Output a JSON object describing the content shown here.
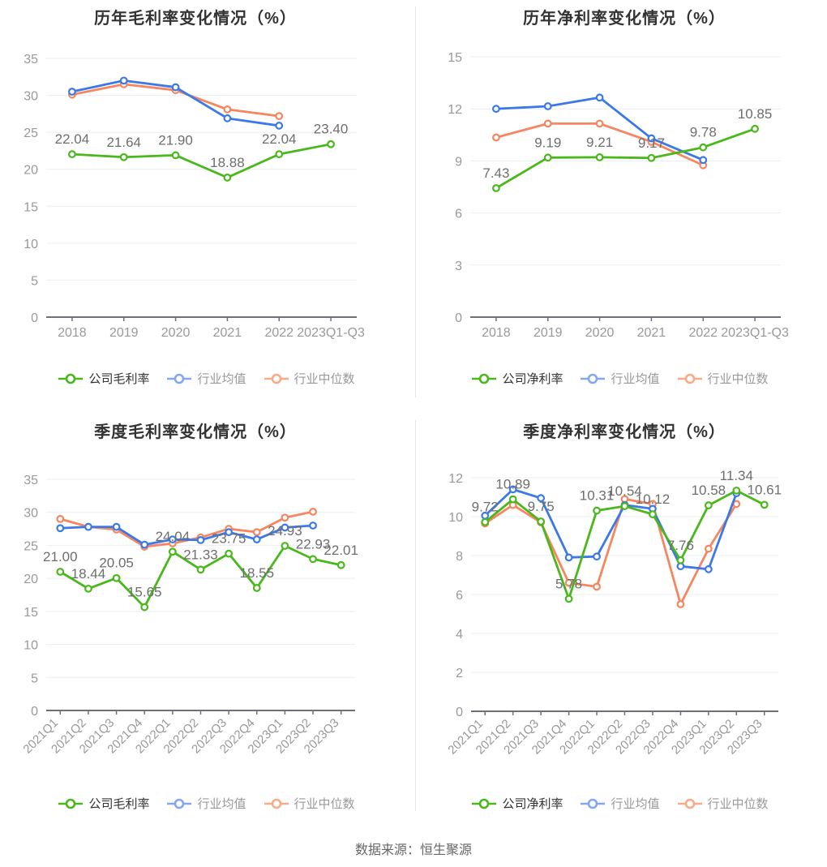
{
  "page": {
    "footer": "数据来源：恒生聚源"
  },
  "colors": {
    "company": "#4ab71a",
    "industry_avg": "#3b79e9",
    "industry_median": "#f6865f",
    "legend_avg": "#84a7f0",
    "legend_median": "#f8ab87",
    "grid": "#e9eef5",
    "axis": "#6e7079",
    "tick_label": "#999999",
    "data_label": "#6e6e6e",
    "title": "#333333"
  },
  "chart_data": [
    {
      "type": "line",
      "title": "历年毛利率变化情况（%）",
      "legend_position": "bottom",
      "grid": true,
      "x_label_rotate": 0,
      "categories": [
        "2018",
        "2019",
        "2020",
        "2021",
        "2022",
        "2023Q1-Q3"
      ],
      "y_axis": {
        "min": 0,
        "max": 35,
        "step": 5
      },
      "series": [
        {
          "id": "company",
          "name": "公司毛利率",
          "values": [
            22.04,
            21.64,
            21.9,
            18.88,
            22.04,
            23.4
          ],
          "labels": [
            "22.04",
            "21.64",
            "21.90",
            "18.88",
            "22.04",
            "23.40"
          ]
        },
        {
          "id": "industry_avg",
          "name": "行业均值",
          "values": [
            30.5,
            32.0,
            31.1,
            26.9,
            25.9
          ]
        },
        {
          "id": "industry_median",
          "name": "行业中位数",
          "values": [
            30.1,
            31.5,
            30.7,
            28.1,
            27.2
          ]
        }
      ]
    },
    {
      "type": "line",
      "title": "历年净利率变化情况（%）",
      "legend_position": "bottom",
      "grid": true,
      "x_label_rotate": 0,
      "categories": [
        "2018",
        "2019",
        "2020",
        "2021",
        "2022",
        "2023Q1-Q3"
      ],
      "y_axis": {
        "min": 0,
        "max": 15,
        "step": 3
      },
      "series": [
        {
          "id": "company",
          "name": "公司净利率",
          "values": [
            7.43,
            9.19,
            9.21,
            9.17,
            9.78,
            10.85
          ],
          "labels": [
            "7.43",
            "9.19",
            "9.21",
            "9.17",
            "9.78",
            "10.85"
          ]
        },
        {
          "id": "industry_avg",
          "name": "行业均值",
          "values": [
            12.0,
            12.15,
            12.65,
            10.3,
            9.05
          ]
        },
        {
          "id": "industry_median",
          "name": "行业中位数",
          "values": [
            10.35,
            11.15,
            11.15,
            10.1,
            8.75
          ]
        }
      ]
    },
    {
      "type": "line",
      "title": "季度毛利率变化情况（%）",
      "legend_position": "bottom",
      "grid": true,
      "x_label_rotate": 45,
      "categories": [
        "2021Q1",
        "2021Q2",
        "2021Q3",
        "2021Q4",
        "2022Q1",
        "2022Q2",
        "2022Q3",
        "2022Q4",
        "2023Q1",
        "2023Q2",
        "2023Q3"
      ],
      "y_axis": {
        "min": 0,
        "max": 35,
        "step": 5
      },
      "series": [
        {
          "id": "company",
          "name": "公司毛利率",
          "values": [
            21.0,
            18.44,
            20.05,
            15.65,
            24.04,
            21.33,
            23.75,
            18.55,
            24.93,
            22.93,
            22.01
          ],
          "labels": [
            "21.00",
            "18.44",
            "20.05",
            "15.65",
            "24.04",
            "21.33",
            "23.75",
            "18.55",
            "24.93",
            "22.93",
            "22.01"
          ]
        },
        {
          "id": "industry_avg",
          "name": "行业均值",
          "values": [
            27.6,
            27.8,
            27.8,
            25.1,
            25.9,
            25.8,
            27.0,
            25.9,
            27.7,
            28.0
          ]
        },
        {
          "id": "industry_median",
          "name": "行业中位数",
          "values": [
            29.0,
            27.8,
            27.4,
            24.8,
            25.3,
            26.2,
            27.5,
            27.0,
            29.2,
            30.1
          ]
        }
      ]
    },
    {
      "type": "line",
      "title": "季度净利率变化情况（%）",
      "legend_position": "bottom",
      "grid": true,
      "x_label_rotate": 45,
      "categories": [
        "2021Q1",
        "2021Q2",
        "2021Q3",
        "2021Q4",
        "2022Q1",
        "2022Q2",
        "2022Q3",
        "2022Q4",
        "2023Q1",
        "2023Q2",
        "2023Q3"
      ],
      "y_axis": {
        "min": 0,
        "max": 12,
        "step": 2
      },
      "series": [
        {
          "id": "company",
          "name": "公司净利率",
          "values": [
            9.72,
            10.89,
            9.75,
            5.78,
            10.31,
            10.54,
            10.12,
            7.76,
            10.58,
            11.34,
            10.61
          ],
          "labels": [
            "9.72",
            "10.89",
            "9.75",
            "5.78",
            "10.31",
            "10.54",
            "10.12",
            "7.76",
            "10.58",
            "11.34",
            "10.61"
          ]
        },
        {
          "id": "industry_avg",
          "name": "行业均值",
          "values": [
            10.05,
            11.4,
            10.95,
            7.9,
            7.95,
            10.6,
            10.4,
            7.45,
            7.3,
            11.2
          ]
        },
        {
          "id": "industry_median",
          "name": "行业中位数",
          "values": [
            9.65,
            10.6,
            9.7,
            6.6,
            6.4,
            10.9,
            10.65,
            5.5,
            8.35,
            10.65
          ]
        }
      ]
    }
  ]
}
